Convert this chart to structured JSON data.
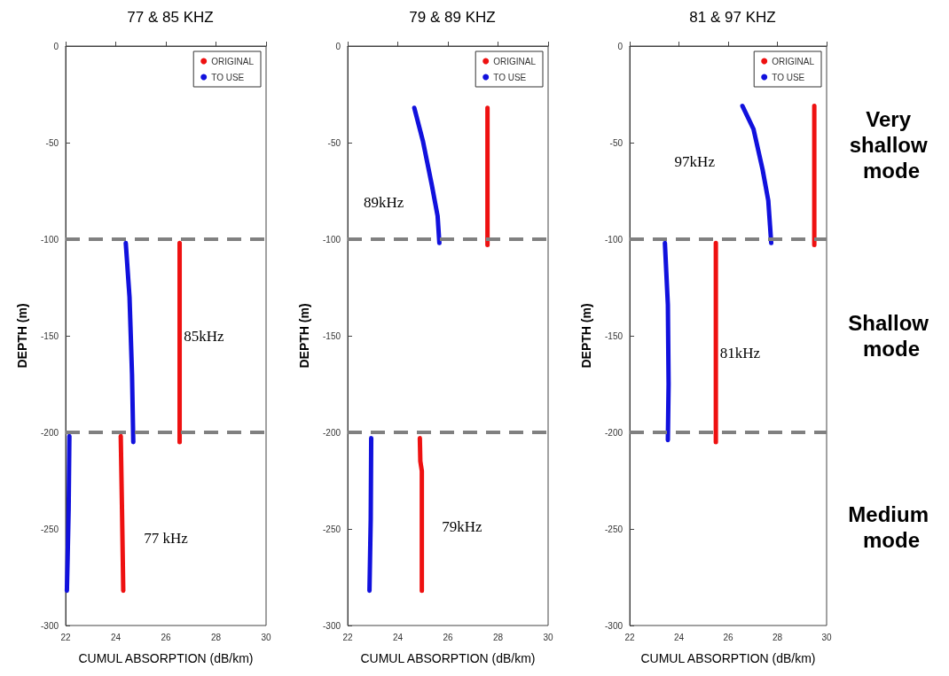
{
  "chart_data": [
    {
      "type": "line",
      "title": "77 & 85 KHZ",
      "xlabel": "CUMUL ABSORPTION (dB/km)",
      "ylabel": "DEPTH (m)",
      "xlim": [
        22,
        30
      ],
      "ylim": [
        -300,
        0
      ],
      "xticks": [
        22,
        24,
        26,
        28,
        30
      ],
      "yticks": [
        -300,
        -250,
        -200,
        -150,
        -100,
        -50,
        0
      ],
      "grid": false,
      "legend": "top right",
      "marker": "none",
      "line_style": "solid",
      "series": [
        {
          "name": "ORIGINAL",
          "color": "#ee1111",
          "x": [
            26.55,
            26.55,
            26.55,
            null,
            24.2,
            24.25,
            24.3
          ],
          "values": [
            -102,
            -150,
            -205,
            null,
            -202,
            -240,
            -282
          ]
        },
        {
          "name": "TO USE",
          "color": "#1111dd",
          "x": [
            24.4,
            24.55,
            24.65,
            24.7,
            null,
            22.15,
            22.12,
            22.08,
            22.05
          ],
          "values": [
            -102,
            -130,
            -170,
            -205,
            null,
            -202,
            -240,
            -265,
            -282
          ]
        }
      ],
      "ref_lines": [
        {
          "axis": "y",
          "value": -100,
          "color": "#808080",
          "line_style": "dashed"
        },
        {
          "axis": "y",
          "value": -200,
          "color": "#808080",
          "line_style": "dashed"
        }
      ],
      "annotations": [
        "85kHz",
        "77 kHz"
      ]
    },
    {
      "type": "line",
      "title": "79 & 89 KHZ",
      "xlabel": "CUMUL ABSORPTION (dB/km)",
      "ylabel": "DEPTH (m)",
      "xlim": [
        22,
        30
      ],
      "ylim": [
        -300,
        0
      ],
      "xticks": [
        22,
        24,
        26,
        28,
        30
      ],
      "yticks": [
        -300,
        -250,
        -200,
        -150,
        -100,
        -50,
        0
      ],
      "grid": false,
      "legend": "top right",
      "marker": "none",
      "line_style": "solid",
      "series": [
        {
          "name": "ORIGINAL",
          "color": "#ee1111",
          "x": [
            27.58,
            27.58,
            27.58,
            null,
            24.88,
            24.9,
            24.96,
            24.96
          ],
          "values": [
            -32,
            -70,
            -103,
            null,
            -203,
            -215,
            -220,
            -282
          ]
        },
        {
          "name": "TO USE",
          "color": "#1111dd",
          "x": [
            24.66,
            25.0,
            25.36,
            25.59,
            25.66,
            null,
            22.94,
            22.92,
            22.87
          ],
          "values": [
            -32,
            -49,
            -72,
            -88,
            -102,
            null,
            -203,
            -245,
            -282
          ]
        }
      ],
      "ref_lines": [
        {
          "axis": "y",
          "value": -100,
          "color": "#808080",
          "line_style": "dashed"
        },
        {
          "axis": "y",
          "value": -200,
          "color": "#808080",
          "line_style": "dashed"
        }
      ],
      "annotations": [
        "89kHz",
        "79kHz"
      ]
    },
    {
      "type": "line",
      "title": "81 & 97 KHZ",
      "xlabel": "CUMUL ABSORPTION (dB/km)",
      "ylabel": "DEPTH (m)",
      "xlim": [
        22,
        30
      ],
      "ylim": [
        -300,
        0
      ],
      "xticks": [
        22,
        24,
        26,
        28,
        30
      ],
      "yticks": [
        -300,
        -250,
        -200,
        -150,
        -100,
        -50,
        0
      ],
      "grid": false,
      "legend": "top right",
      "marker": "none",
      "line_style": "solid",
      "series": [
        {
          "name": "ORIGINAL",
          "color": "#ee1111",
          "x": [
            29.5,
            29.5,
            29.5,
            null,
            25.5,
            25.5,
            25.5
          ],
          "values": [
            -31,
            -70,
            -103,
            null,
            -102,
            -150,
            -205
          ]
        },
        {
          "name": "TO USE",
          "color": "#1111dd",
          "x": [
            26.58,
            27.03,
            27.4,
            27.63,
            27.75,
            null,
            23.43,
            23.55,
            23.58,
            23.55
          ],
          "values": [
            -31,
            -43,
            -64,
            -80,
            -102,
            null,
            -102,
            -134,
            -175,
            -204
          ]
        }
      ],
      "ref_lines": [
        {
          "axis": "y",
          "value": -100,
          "color": "#808080",
          "line_style": "dashed"
        },
        {
          "axis": "y",
          "value": -200,
          "color": "#808080",
          "line_style": "dashed"
        }
      ],
      "annotations": [
        "97kHz",
        "81kHz",
        "Very shallow mode",
        "Shallow mode",
        "Medium mode"
      ]
    }
  ]
}
